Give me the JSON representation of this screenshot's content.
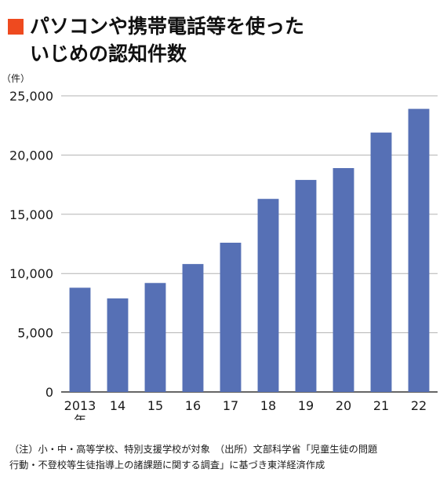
{
  "title": {
    "line1": "パソコンや携帯電話等を使った",
    "line2": "いじめの認知件数",
    "marker_color": "#ee4a1f"
  },
  "unit_label": "（件）",
  "notes": {
    "line1": "（注）小・中・高等学校、特別支援学校が対象　（出所）文部科学省「児童生徒の問題",
    "line2": "行動・不登校等生徒指導上の諸課題に関する調査」に基づき東洋経済作成"
  },
  "chart_data": {
    "type": "bar",
    "categories": [
      "2013",
      "14",
      "15",
      "16",
      "17",
      "18",
      "19",
      "20",
      "21",
      "22"
    ],
    "first_category_suffix": "年",
    "values": [
      8800,
      7900,
      9200,
      10800,
      12600,
      16300,
      17900,
      18900,
      21900,
      23900
    ],
    "ylim": [
      0,
      25000
    ],
    "yticks": [
      "0",
      "5,000",
      "10,000",
      "15,000",
      "20,000",
      "25,000"
    ],
    "ytick_values": [
      0,
      5000,
      10000,
      15000,
      20000,
      25000
    ],
    "grid": true,
    "bar_color": "#5670b5",
    "grid_color": "#b3b3b3",
    "axis_color": "#333333"
  }
}
